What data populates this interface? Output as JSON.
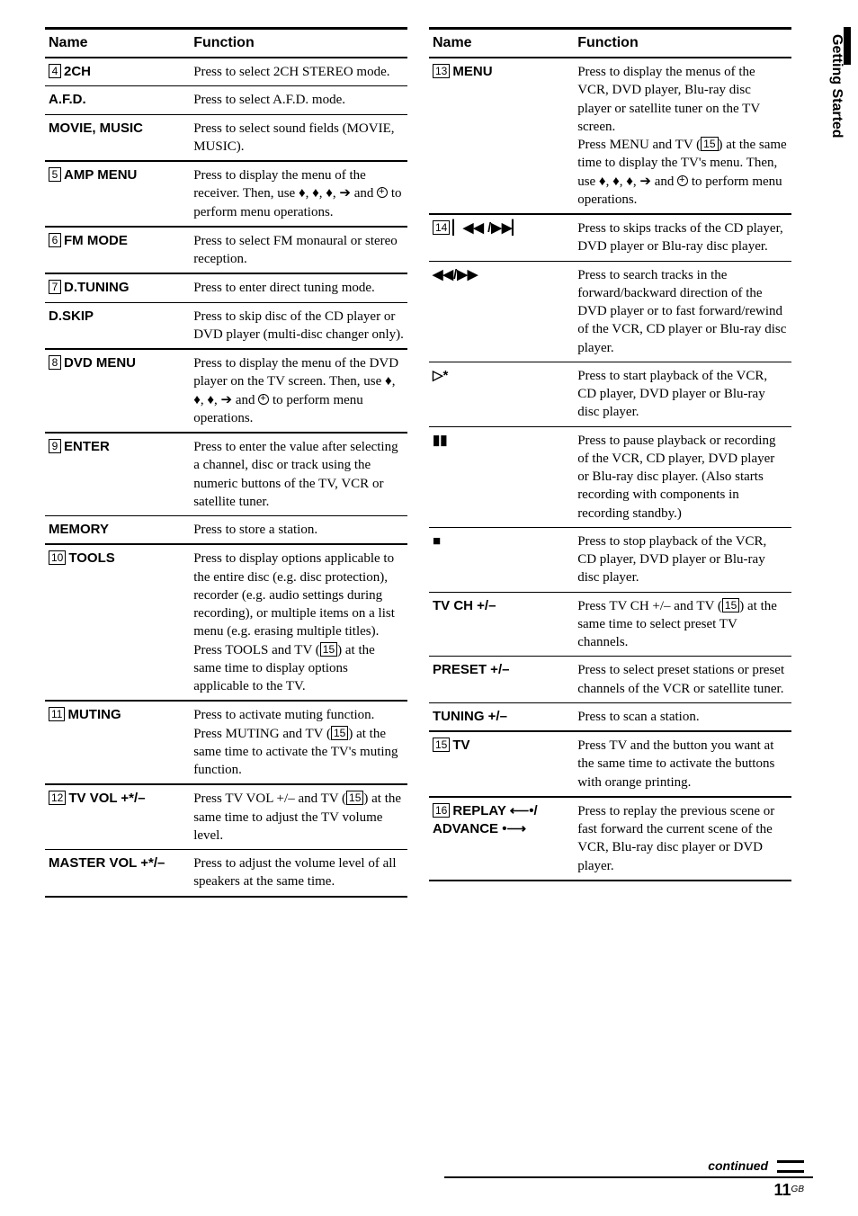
{
  "side_tab": "Getting Started",
  "continued": "continued",
  "page_number": "11",
  "page_suffix": "GB",
  "headers": {
    "name": "Name",
    "function": "Function"
  },
  "left": [
    {
      "ref": "4",
      "label": "2CH",
      "func_html": "Press to select 2CH STEREO mode.",
      "thick": false
    },
    {
      "ref": "",
      "label": "A.F.D.",
      "func_html": "Press to select A.F.D. mode.",
      "thick": false
    },
    {
      "ref": "",
      "label": "MOVIE, MUSIC",
      "func_html": "Press to select sound fields (MOVIE, MUSIC).",
      "thick": true
    },
    {
      "ref": "5",
      "label": "AMP MENU",
      "func_html": "Press to display the menu of the receiver. Then, use ♦, ♦, ♦, ➔ and <span class='enter-icon' data-name='enter-circle-icon' data-interactable='false'></span> to perform menu operations.",
      "thick": true
    },
    {
      "ref": "6",
      "label": "FM MODE",
      "func_html": "Press to select FM monaural or stereo reception.",
      "thick": true
    },
    {
      "ref": "7",
      "label": "D.TUNING",
      "func_html": "Press to enter direct tuning mode.",
      "thick": false
    },
    {
      "ref": "",
      "label": "D.SKIP",
      "func_html": "Press to skip disc of the CD player or DVD player (multi-disc changer only).",
      "thick": true
    },
    {
      "ref": "8",
      "label": "DVD MENU",
      "func_html": "Press to display the menu of the DVD player on the TV screen. Then, use ♦, ♦, ♦, ➔ and <span class='enter-icon' data-name='enter-circle-icon' data-interactable='false'></span> to perform menu operations.",
      "thick": true
    },
    {
      "ref": "9",
      "label": "ENTER",
      "func_html": "Press to enter the value after selecting a channel, disc or track using the numeric buttons of the TV, VCR or satellite tuner.",
      "thick": false
    },
    {
      "ref": "",
      "label": "MEMORY",
      "func_html": "Press to store a station.",
      "thick": true
    },
    {
      "ref": "10",
      "label": "TOOLS",
      "func_html": "Press to display options applicable to the entire disc (e.g. disc protection), recorder (e.g. audio settings during recording), or multiple items on a list menu (e.g. erasing multiple titles).<br>Press TOOLS and TV (<span class='ref-txt'>15</span>) at the same time to display options applicable to the TV.",
      "thick": true
    },
    {
      "ref": "11",
      "label": "MUTING",
      "func_html": "Press to activate muting function.<br>Press MUTING and TV (<span class='ref-txt'>15</span>) at the same time to activate the TV's muting function.",
      "thick": true
    },
    {
      "ref": "12",
      "label": "TV VOL +*/–",
      "func_html": "Press TV VOL +/– and TV (<span class='ref-txt'>15</span>) at the same time to adjust the TV volume level.",
      "thick": false
    },
    {
      "ref": "",
      "label": "MASTER VOL +*/–",
      "func_html": "Press to adjust the volume level of all speakers at the same time.",
      "thick": true
    }
  ],
  "right": [
    {
      "ref": "13",
      "label": "MENU",
      "func_html": "Press to display the menus of the VCR, DVD player, Blu-ray disc player or satellite tuner on the TV screen.<br>Press MENU and TV (<span class='ref-txt'>15</span>) at the same time to display the TV's menu. Then, use ♦, ♦, ♦, ➔ and <span class='enter-icon' data-name='enter-circle-icon' data-interactable='false'></span> to perform menu operations.",
      "thick": true
    },
    {
      "ref": "14",
      "label_html": "<span class='sym'>▏◀◀ /▶▶▏</span>",
      "func_html": "Press to skips tracks of the CD player, DVD player or Blu-ray disc player.",
      "thick": false
    },
    {
      "ref": "",
      "label_html": "<span class='sym'>◀◀/▶▶</span>",
      "func_html": "Press to search tracks in the forward/backward direction of the DVD player or to fast forward/rewind of the VCR, CD player or Blu-ray disc player.",
      "thick": false
    },
    {
      "ref": "",
      "label_html": "<span class='sym'>▷</span>*",
      "func_html": "Press to start playback of the VCR, CD player, DVD player or Blu-ray disc player.",
      "thick": false
    },
    {
      "ref": "",
      "label_html": "<span class='sym'>▮▮</span>",
      "func_html": "Press to pause playback or recording of the VCR, CD player, DVD player or Blu-ray disc player. (Also starts recording with components in recording standby.)",
      "thick": false
    },
    {
      "ref": "",
      "label_html": "<span class='sym'>■</span>",
      "func_html": "Press to stop playback of the VCR, CD player, DVD player or Blu-ray disc player.",
      "thick": false
    },
    {
      "ref": "",
      "label": "TV CH +/–",
      "func_html": "Press TV CH +/– and TV (<span class='ref-txt'>15</span>) at the same time to select preset TV channels.",
      "thick": false
    },
    {
      "ref": "",
      "label": "PRESET +/–",
      "func_html": "Press to select preset stations or preset channels of the VCR or satellite tuner.",
      "thick": false
    },
    {
      "ref": "",
      "label": "TUNING +/–",
      "func_html": "Press to scan a station.",
      "thick": true
    },
    {
      "ref": "15",
      "label": "TV",
      "func_html": "Press TV and the button you want at the same time to activate the buttons with orange printing.",
      "thick": true
    },
    {
      "ref": "16",
      "label_html": "REPLAY <span class='sym'>⟵•</span>/<br>ADVANCE <span class='sym'>•⟶</span>",
      "func_html": "Press to replay the previous scene or fast forward the current scene of the VCR, Blu-ray disc player or DVD player.",
      "thick": true
    }
  ]
}
